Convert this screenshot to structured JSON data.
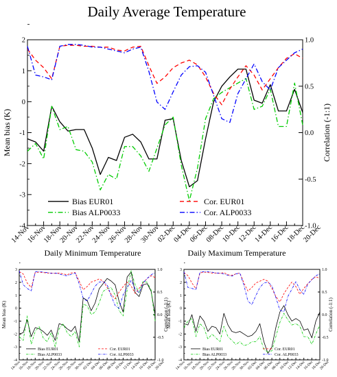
{
  "figure": {
    "title": "Daily Average Temperature",
    "subtitle_left": "Daily Minimum Temperature",
    "subtitle_right": "Daily Maximum Temperature"
  },
  "chart_data": [
    {
      "id": "main",
      "type": "line",
      "title": "Daily Average Temperature",
      "ylabel": "Mean bias (K)",
      "ylabel_right": "Correlation (-1:1)",
      "ylim": [
        -4,
        2
      ],
      "ylim_right": [
        -1,
        1
      ],
      "yticks": [
        "-4",
        "-3",
        "-2",
        "-1",
        "0",
        "1",
        "2"
      ],
      "yticks_right": [
        "-1.0",
        "-0.5",
        "0.0",
        "0.5",
        "1.0"
      ],
      "xticks": [
        "14-Nov",
        "16-Nov",
        "18-Nov",
        "20-Nov",
        "22-Nov",
        "24-Nov",
        "26-Nov",
        "28-Nov",
        "30-Nov",
        "02-Dec",
        "04-Dec",
        "06-Dec",
        "08-Dec",
        "10-Dec",
        "12-Dec",
        "14-Dec",
        "16-Dec",
        "18-Dec",
        "20-Dec"
      ],
      "grid": false,
      "legend": "bottom",
      "series": [
        {
          "name": "Bias  EUR01",
          "axis": "left",
          "color": "#000000",
          "dash": "solid",
          "values": [
            -1.2,
            -1.3,
            -1.6,
            -0.15,
            -0.65,
            -0.95,
            -0.9,
            -0.9,
            -1.5,
            -2.35,
            -1.8,
            -1.9,
            -1.15,
            -1.05,
            -1.3,
            -1.85,
            -1.85,
            -0.6,
            -0.55,
            -1.9,
            -2.75,
            -2.55,
            -1.2,
            0.0,
            0.5,
            0.8,
            1.05,
            1.05,
            0.05,
            -0.05,
            0.55,
            -0.3,
            -0.3,
            0.4,
            -0.35
          ]
        },
        {
          "name": "Bias  ALP0033",
          "axis": "left",
          "color": "#00cc00",
          "dash": "dashdot",
          "values": [
            -1.6,
            -1.35,
            -1.85,
            -0.15,
            -0.9,
            -0.8,
            -1.55,
            -1.6,
            -1.95,
            -2.85,
            -2.35,
            -2.5,
            -1.45,
            -1.45,
            -1.75,
            -2.25,
            -1.5,
            -0.75,
            -0.5,
            -2.05,
            -3.2,
            -2.15,
            -0.55,
            0.1,
            0.3,
            0.45,
            0.6,
            0.75,
            -0.25,
            -0.15,
            0.4,
            -0.8,
            -0.8,
            0.6,
            -0.75
          ]
        },
        {
          "name": "Cor.  EUR01",
          "axis": "right",
          "color": "#ff0000",
          "dash": "dash",
          "values": [
            0.9,
            0.78,
            0.7,
            0.58,
            0.93,
            0.94,
            0.94,
            0.93,
            0.93,
            0.92,
            0.92,
            0.89,
            0.88,
            0.92,
            0.93,
            0.72,
            0.53,
            0.6,
            0.7,
            0.75,
            0.78,
            0.73,
            0.6,
            0.42,
            0.3,
            0.47,
            0.6,
            0.72,
            0.62,
            0.46,
            0.58,
            0.7,
            0.8,
            0.85,
            0.8
          ]
        },
        {
          "name": "Cor.  ALP0033",
          "axis": "right",
          "color": "#0000ff",
          "dash": "dashdot",
          "values": [
            0.93,
            0.62,
            0.6,
            0.57,
            0.93,
            0.95,
            0.95,
            0.94,
            0.92,
            0.92,
            0.9,
            0.88,
            0.86,
            0.9,
            0.92,
            0.66,
            0.33,
            0.25,
            0.44,
            0.62,
            0.71,
            0.72,
            0.65,
            0.4,
            0.15,
            0.11,
            0.42,
            0.58,
            0.74,
            0.55,
            0.46,
            0.7,
            0.78,
            0.86,
            0.9
          ]
        }
      ]
    },
    {
      "id": "min",
      "type": "line",
      "title": "Daily Minimum Temperature",
      "ylabel": "Mean bias (K)",
      "ylabel_right": "Correlation (-1:1)",
      "ylim": [
        -4,
        3
      ],
      "ylim_right": [
        -1,
        1
      ],
      "yticks": [
        "-4",
        "-3",
        "-2",
        "-1",
        "0",
        "1",
        "2",
        "3"
      ],
      "yticks_right": [
        "-1.0",
        "-0.5",
        "0.0",
        "0.5",
        "1.0"
      ],
      "xticks": [
        "14-Nov",
        "16-Nov",
        "18-Nov",
        "20-Nov",
        "22-Nov",
        "24-Nov",
        "26-Nov",
        "28-Nov",
        "30-Nov",
        "02-Dec",
        "04-Dec",
        "06-Dec",
        "08-Dec",
        "10-Dec",
        "12-Dec",
        "14-Dec",
        "16-Dec",
        "18-Dec",
        "20-Dec"
      ],
      "grid": false,
      "legend": "bottom",
      "series": [
        {
          "name": "Bias  EUR01",
          "axis": "left",
          "color": "#000000",
          "dash": "solid",
          "values": [
            -2.0,
            -1.9,
            -0.9,
            -2.2,
            -1.5,
            -1.6,
            -1.8,
            -2.1,
            -1.7,
            -2.5,
            -1.2,
            -1.3,
            -1.6,
            -1.8,
            -1.4,
            -2.6,
            0.8,
            0.6,
            -0.2,
            0.4,
            1.5,
            1.9,
            2.3,
            2.1,
            1.8,
            0.5,
            -0.3,
            2.4,
            2.8,
            1.2,
            0.9,
            1.8,
            1.9,
            1.3,
            -0.5
          ]
        },
        {
          "name": "Bias  ALP0033",
          "axis": "left",
          "color": "#00cc00",
          "dash": "dashdot",
          "values": [
            -2.2,
            -2.5,
            -0.6,
            -2.8,
            -1.8,
            -1.4,
            -2.3,
            -2.6,
            -1.9,
            -3.0,
            -1.6,
            -1.2,
            -1.9,
            -2.2,
            -1.8,
            -3.0,
            0.3,
            0.2,
            -0.5,
            -0.3,
            0.4,
            1.3,
            1.5,
            1.6,
            1.0,
            -0.2,
            -0.6,
            1.4,
            2.9,
            1.8,
            1.2,
            2.1,
            2.0,
            1.4,
            -1.0
          ]
        },
        {
          "name": "Cor.  EUR01",
          "axis": "right",
          "color": "#ff0000",
          "dash": "dash",
          "values": [
            0.95,
            0.9,
            0.7,
            0.6,
            0.93,
            0.94,
            0.93,
            0.92,
            0.92,
            0.91,
            0.92,
            0.9,
            0.88,
            0.92,
            0.93,
            0.74,
            0.55,
            0.62,
            0.72,
            0.75,
            0.79,
            0.74,
            0.6,
            0.45,
            0.35,
            0.5,
            0.62,
            0.72,
            0.63,
            0.47,
            0.58,
            0.7,
            0.8,
            0.86,
            0.82
          ]
        },
        {
          "name": "Cor.  ALP0033",
          "axis": "right",
          "color": "#0000ff",
          "dash": "dashdot",
          "values": [
            0.97,
            0.66,
            0.58,
            0.52,
            0.95,
            0.95,
            0.94,
            0.93,
            0.91,
            0.92,
            0.9,
            0.87,
            0.86,
            0.89,
            0.92,
            0.68,
            0.36,
            0.3,
            0.46,
            0.63,
            0.72,
            0.73,
            0.66,
            0.42,
            0.2,
            0.14,
            0.44,
            0.6,
            0.76,
            0.57,
            0.48,
            0.7,
            0.8,
            0.88,
            0.93
          ]
        }
      ]
    },
    {
      "id": "max",
      "type": "line",
      "title": "Daily Maximum Temperature",
      "ylabel": "Mean bias (K)",
      "ylabel_right": "Correlation (-1:1)",
      "ylim": [
        -4,
        3
      ],
      "ylim_right": [
        -1,
        1
      ],
      "yticks": [
        "-4",
        "-3",
        "-2",
        "-1",
        "0",
        "1",
        "2",
        "3"
      ],
      "yticks_right": [
        "-1.0",
        "-0.5",
        "0.0",
        "0.5",
        "1.0"
      ],
      "xticks": [
        "14-Nov",
        "16-Nov",
        "18-Nov",
        "20-Nov",
        "22-Nov",
        "24-Nov",
        "26-Nov",
        "28-Nov",
        "30-Nov",
        "02-Dec",
        "04-Dec",
        "06-Dec",
        "08-Dec",
        "10-Dec",
        "12-Dec",
        "14-Dec",
        "16-Dec",
        "18-Dec",
        "20-Dec"
      ],
      "grid": false,
      "legend": "bottom",
      "series": [
        {
          "name": "Bias  EUR01",
          "axis": "left",
          "color": "#000000",
          "dash": "solid",
          "values": [
            -1.2,
            -1.3,
            -0.5,
            -1.8,
            -0.6,
            -1.0,
            -1.8,
            -1.4,
            -1.5,
            -2.0,
            -0.4,
            -1.3,
            -1.8,
            -1.9,
            -1.8,
            -2.0,
            -2.2,
            -2.1,
            -1.8,
            -1.2,
            -2.6,
            -3.5,
            -3.0,
            -1.5,
            -0.3,
            0.2,
            -0.5,
            -1.0,
            -0.8,
            -1.0,
            -1.7,
            -1.6,
            -2.3,
            -1.0,
            -0.3
          ]
        },
        {
          "name": "Bias  ALP0033",
          "axis": "left",
          "color": "#00cc00",
          "dash": "dashdot",
          "values": [
            -1.5,
            -1.0,
            -0.8,
            -2.2,
            -1.2,
            -1.5,
            -2.4,
            -2.0,
            -2.3,
            -2.6,
            -1.4,
            -2.2,
            -2.5,
            -2.8,
            -2.6,
            -2.9,
            -2.8,
            -2.6,
            -2.6,
            -2.2,
            -3.2,
            -3.4,
            -3.3,
            -2.2,
            -1.1,
            -0.4,
            -0.9,
            -1.3,
            -1.2,
            -1.4,
            -2.2,
            -2.2,
            -2.8,
            -2.0,
            -1.3
          ]
        },
        {
          "name": "Cor.  EUR01",
          "axis": "right",
          "color": "#ff0000",
          "dash": "dash",
          "values": [
            0.93,
            0.86,
            0.7,
            0.57,
            0.92,
            0.94,
            0.93,
            0.92,
            0.92,
            0.91,
            0.93,
            0.88,
            0.87,
            0.9,
            0.92,
            0.7,
            0.52,
            0.6,
            0.7,
            0.74,
            0.78,
            0.74,
            0.58,
            0.4,
            0.28,
            0.46,
            0.6,
            0.72,
            0.62,
            0.45,
            0.58,
            0.68,
            0.78,
            0.84,
            0.8
          ]
        },
        {
          "name": "Cor.  ALP0033",
          "axis": "right",
          "color": "#0000ff",
          "dash": "dashdot",
          "values": [
            0.95,
            0.6,
            0.58,
            0.55,
            0.94,
            0.95,
            0.95,
            0.94,
            0.92,
            0.92,
            0.9,
            0.87,
            0.85,
            0.9,
            0.92,
            0.65,
            0.3,
            0.22,
            0.42,
            0.6,
            0.7,
            0.72,
            0.64,
            0.38,
            0.1,
            0.06,
            0.4,
            0.56,
            0.73,
            0.55,
            0.45,
            0.68,
            0.77,
            0.86,
            0.9
          ]
        }
      ]
    }
  ]
}
